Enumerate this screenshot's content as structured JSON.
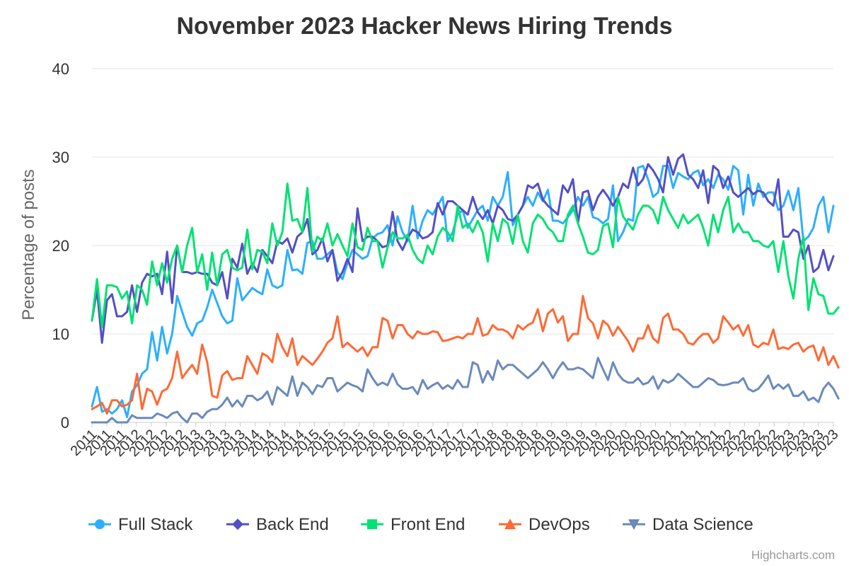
{
  "chart_data": {
    "type": "line",
    "title": "November 2023 Hacker News Hiring Trends",
    "ylabel": "Percentage of posts",
    "xlabel": "",
    "ylim": [
      0,
      40
    ],
    "yticks": [
      0,
      10,
      20,
      30,
      40
    ],
    "x_start": "2011-04",
    "x_tick_labels": [
      "2011",
      "2011",
      "2011",
      "2012",
      "2012",
      "2012",
      "2012",
      "2013",
      "2013",
      "2013",
      "2013",
      "2014",
      "2014",
      "2014",
      "2014",
      "2015",
      "2015",
      "2015",
      "2015",
      "2016",
      "2016",
      "2016",
      "2016",
      "2017",
      "2017",
      "2017",
      "2017",
      "2018",
      "2018",
      "2018",
      "2018",
      "2019",
      "2019",
      "2019",
      "2019",
      "2020",
      "2020",
      "2020",
      "2020",
      "2021",
      "2021",
      "2021",
      "2021",
      "2022",
      "2022",
      "2022",
      "2022",
      "2023",
      "2023",
      "2023",
      "2023"
    ],
    "grid": true,
    "legend": "bottom",
    "credits": "Highcharts.com",
    "series": [
      {
        "name": "Full Stack",
        "color": "#2caffe",
        "marker": "circle",
        "values": [
          1.8,
          4.0,
          1.2,
          1.5,
          1.0,
          1.5,
          2.5,
          0.6,
          3.5,
          4.2,
          5.5,
          6.0,
          10.2,
          7.0,
          10.8,
          7.8,
          10.0,
          14.3,
          12.5,
          10.8,
          9.8,
          11.2,
          11.5,
          13.0,
          15.0,
          13.5,
          12.0,
          11.2,
          11.5,
          16.3,
          13.8,
          14.5,
          15.2,
          14.8,
          14.5,
          17.3,
          15.5,
          15.2,
          15.5,
          19.5,
          17.2,
          17.3,
          16.8,
          20.3,
          20.5,
          18.5,
          18.5,
          19.0,
          19.5,
          17.0,
          16.2,
          18.0,
          19.5,
          19.0,
          18.5,
          18.8,
          20.8,
          21.3,
          21.5,
          22.3,
          20.0,
          23.3,
          21.5,
          20.5,
          24.5,
          20.8,
          22.8,
          24.0,
          23.5,
          24.5,
          25.5,
          20.5,
          21.5,
          23.5,
          24.0,
          22.0,
          23.0,
          24.0,
          24.5,
          22.8,
          25.5,
          24.5,
          25.5,
          28.3,
          22.3,
          23.5,
          24.5,
          25.5,
          24.5,
          26.0,
          25.0,
          26.3,
          22.8,
          22.8,
          22.5,
          23.2,
          24.0,
          25.5,
          24.5,
          25.5,
          23.2,
          23.0,
          22.5,
          23.0,
          26.8,
          20.5,
          21.5,
          23.0,
          22.8,
          28.8,
          29.0,
          27.5,
          25.5,
          26.0,
          29.0,
          29.0,
          26.5,
          28.2,
          27.8,
          27.5,
          28.2,
          28.5,
          26.8,
          27.5,
          26.5,
          28.0,
          27.5,
          26.3,
          29.0,
          28.5,
          23.5,
          28.0,
          24.5,
          27.0,
          25.5,
          26.0,
          26.0,
          24.0,
          24.5,
          26.2,
          24.0,
          26.5,
          20.5,
          21.0,
          22.0,
          24.5,
          25.5,
          21.5,
          24.5
        ]
      },
      {
        "name": "Back End",
        "color": "#544fc5",
        "marker": "diamond",
        "values": [
          11.5,
          15.0,
          9.0,
          13.8,
          14.5,
          12.0,
          12.0,
          12.5,
          15.5,
          12.5,
          15.8,
          16.8,
          16.5,
          16.8,
          14.5,
          19.3,
          13.5,
          20.0,
          17.0,
          17.0,
          16.8,
          17.0,
          16.8,
          16.8,
          15.8,
          15.5,
          17.0,
          14.0,
          18.5,
          17.5,
          20.2,
          16.8,
          18.0,
          17.0,
          19.5,
          18.8,
          18.0,
          20.5,
          20.2,
          20.8,
          19.2,
          21.0,
          21.5,
          23.0,
          19.0,
          19.5,
          20.8,
          18.2,
          19.5,
          16.0,
          17.0,
          18.5,
          17.0,
          24.2,
          20.5,
          21.0,
          21.0,
          20.5,
          19.8,
          20.0,
          23.8,
          20.5,
          19.5,
          20.8,
          21.8,
          21.5,
          20.8,
          21.0,
          21.5,
          24.8,
          23.5,
          25.0,
          25.0,
          24.5,
          24.0,
          23.5,
          25.5,
          23.8,
          23.0,
          24.0,
          22.5,
          24.5,
          24.0,
          23.0,
          22.8,
          23.5,
          24.5,
          26.8,
          26.5,
          27.0,
          25.2,
          24.5,
          24.0,
          23.5,
          26.8,
          26.0,
          27.5,
          22.5,
          26.0,
          26.2,
          24.0,
          25.5,
          26.3,
          25.5,
          24.5,
          25.5,
          27.0,
          26.5,
          28.8,
          26.8,
          27.5,
          29.2,
          28.5,
          27.5,
          26.0,
          30.0,
          28.0,
          29.8,
          30.3,
          28.0,
          27.5,
          26.5,
          28.5,
          24.8,
          29.0,
          28.5,
          26.5,
          27.8,
          26.0,
          25.5,
          26.0,
          26.5,
          25.8,
          26.2,
          26.0,
          25.0,
          24.5,
          27.5,
          21.0,
          21.0,
          21.8,
          21.5,
          18.5,
          20.0,
          17.0,
          17.5,
          19.5,
          17.2,
          18.8
        ]
      },
      {
        "name": "Front End",
        "color": "#00e272",
        "marker": "square",
        "values": [
          11.5,
          16.2,
          10.8,
          15.5,
          15.5,
          15.3,
          14.0,
          14.8,
          11.2,
          15.5,
          15.0,
          13.3,
          18.2,
          15.5,
          18.0,
          15.8,
          18.5,
          20.0,
          17.0,
          20.0,
          22.0,
          17.0,
          19.0,
          15.0,
          19.2,
          15.5,
          19.0,
          19.5,
          17.5,
          17.2,
          17.5,
          21.8,
          17.3,
          19.5,
          19.3,
          18.0,
          22.5,
          20.0,
          21.5,
          27.0,
          22.8,
          23.0,
          21.5,
          26.5,
          19.3,
          21.0,
          20.5,
          22.5,
          20.0,
          21.3,
          20.0,
          18.8,
          22.5,
          19.8,
          19.5,
          22.0,
          20.5,
          20.5,
          17.5,
          19.8,
          21.5,
          20.8,
          20.8,
          21.2,
          19.5,
          18.5,
          18.0,
          20.0,
          19.0,
          21.0,
          22.0,
          21.5,
          20.5,
          24.5,
          22.0,
          22.5,
          21.5,
          22.8,
          21.5,
          18.2,
          22.5,
          20.5,
          23.0,
          22.5,
          20.2,
          23.5,
          20.5,
          19.2,
          22.5,
          23.5,
          23.0,
          22.0,
          21.5,
          20.5,
          20.5,
          23.5,
          24.5,
          22.5,
          21.0,
          19.2,
          19.0,
          19.5,
          22.2,
          22.5,
          19.8,
          25.5,
          23.3,
          22.5,
          21.8,
          23.5,
          24.5,
          24.5,
          24.0,
          22.5,
          25.5,
          24.0,
          23.0,
          22.0,
          23.5,
          22.5,
          23.0,
          23.5,
          22.0,
          20.0,
          23.5,
          21.5,
          24.0,
          25.5,
          21.5,
          22.5,
          21.5,
          21.5,
          20.5,
          20.5,
          20.0,
          19.8,
          20.5,
          17.0,
          20.5,
          16.5,
          14.0,
          18.5,
          21.0,
          12.7,
          16.3,
          14.5,
          14.3,
          12.3,
          12.3,
          13.0
        ]
      },
      {
        "name": "DevOps",
        "color": "#fe6a35",
        "marker": "triangle",
        "values": [
          1.5,
          1.8,
          2.2,
          1.0,
          2.5,
          2.5,
          1.8,
          2.0,
          2.5,
          5.5,
          1.5,
          3.8,
          3.5,
          2.0,
          3.5,
          3.8,
          5.0,
          8.0,
          5.0,
          5.8,
          6.5,
          5.5,
          8.8,
          6.8,
          3.0,
          2.8,
          5.3,
          5.8,
          4.8,
          5.0,
          5.0,
          7.5,
          6.5,
          5.5,
          7.8,
          7.5,
          6.8,
          10.0,
          8.5,
          7.5,
          9.5,
          6.5,
          7.5,
          7.0,
          6.5,
          7.2,
          8.0,
          9.0,
          9.5,
          12.0,
          8.5,
          9.0,
          8.5,
          8.0,
          8.5,
          7.5,
          8.5,
          8.5,
          11.8,
          11.5,
          9.5,
          11.0,
          11.0,
          10.0,
          9.5,
          10.3,
          10.0,
          10.0,
          10.3,
          10.2,
          9.2,
          9.3,
          9.5,
          9.7,
          9.5,
          10.0,
          10.0,
          11.8,
          9.8,
          10.0,
          11.0,
          10.5,
          10.5,
          10.2,
          9.5,
          11.0,
          10.5,
          11.0,
          11.3,
          12.8,
          10.3,
          12.3,
          12.8,
          11.3,
          12.0,
          9.2,
          10.0,
          10.0,
          14.3,
          11.8,
          11.2,
          9.5,
          11.5,
          11.0,
          9.8,
          10.8,
          10.0,
          9.2,
          8.0,
          9.5,
          9.5,
          11.0,
          9.5,
          9.0,
          11.8,
          12.3,
          10.5,
          10.5,
          10.0,
          9.0,
          8.8,
          9.5,
          10.0,
          10.0,
          9.0,
          9.5,
          12.0,
          11.3,
          10.5,
          11.0,
          9.8,
          11.0,
          8.8,
          8.5,
          9.0,
          8.8,
          10.5,
          8.3,
          8.5,
          8.3,
          8.8,
          9.0,
          8.0,
          8.5,
          8.7,
          7.0,
          8.5,
          6.5,
          7.5,
          6.2
        ]
      },
      {
        "name": "Data Science",
        "color": "#6b8abc",
        "marker": "triangle-down",
        "values": [
          0.0,
          0.0,
          0.0,
          0.0,
          0.5,
          0.0,
          0.0,
          0.0,
          0.8,
          0.5,
          0.5,
          0.5,
          0.5,
          1.0,
          0.8,
          0.5,
          1.0,
          1.2,
          0.5,
          0.0,
          1.0,
          1.0,
          0.5,
          1.2,
          1.5,
          1.5,
          2.0,
          2.8,
          1.8,
          2.5,
          1.8,
          3.0,
          3.0,
          2.5,
          2.8,
          3.5,
          2.0,
          4.0,
          3.5,
          3.0,
          5.2,
          3.0,
          4.5,
          4.0,
          3.2,
          4.2,
          4.0,
          5.0,
          5.0,
          3.5,
          4.0,
          4.5,
          4.2,
          4.0,
          3.5,
          6.0,
          5.0,
          4.2,
          4.5,
          4.2,
          5.5,
          4.3,
          3.8,
          3.8,
          4.0,
          3.2,
          4.8,
          3.8,
          4.2,
          4.5,
          3.8,
          4.2,
          3.8,
          4.8,
          4.0,
          4.0,
          6.8,
          6.5,
          4.5,
          5.8,
          4.8,
          7.0,
          6.0,
          6.5,
          6.5,
          6.0,
          5.5,
          5.0,
          5.5,
          6.0,
          6.8,
          6.0,
          5.0,
          6.0,
          6.8,
          6.0,
          6.0,
          6.2,
          6.0,
          5.5,
          5.0,
          7.3,
          6.0,
          4.8,
          6.8,
          5.5,
          4.8,
          4.5,
          4.5,
          5.0,
          4.3,
          4.5,
          5.2,
          3.8,
          4.8,
          4.5,
          4.8,
          5.5,
          5.0,
          4.5,
          4.0,
          4.0,
          4.5,
          5.0,
          4.8,
          4.3,
          4.2,
          4.3,
          4.5,
          4.5,
          5.0,
          3.8,
          3.5,
          3.8,
          4.5,
          5.3,
          3.8,
          4.3,
          3.8,
          4.3,
          3.0,
          3.0,
          3.5,
          2.5,
          2.8,
          2.3,
          3.8,
          4.5,
          3.8,
          2.7
        ]
      }
    ]
  }
}
